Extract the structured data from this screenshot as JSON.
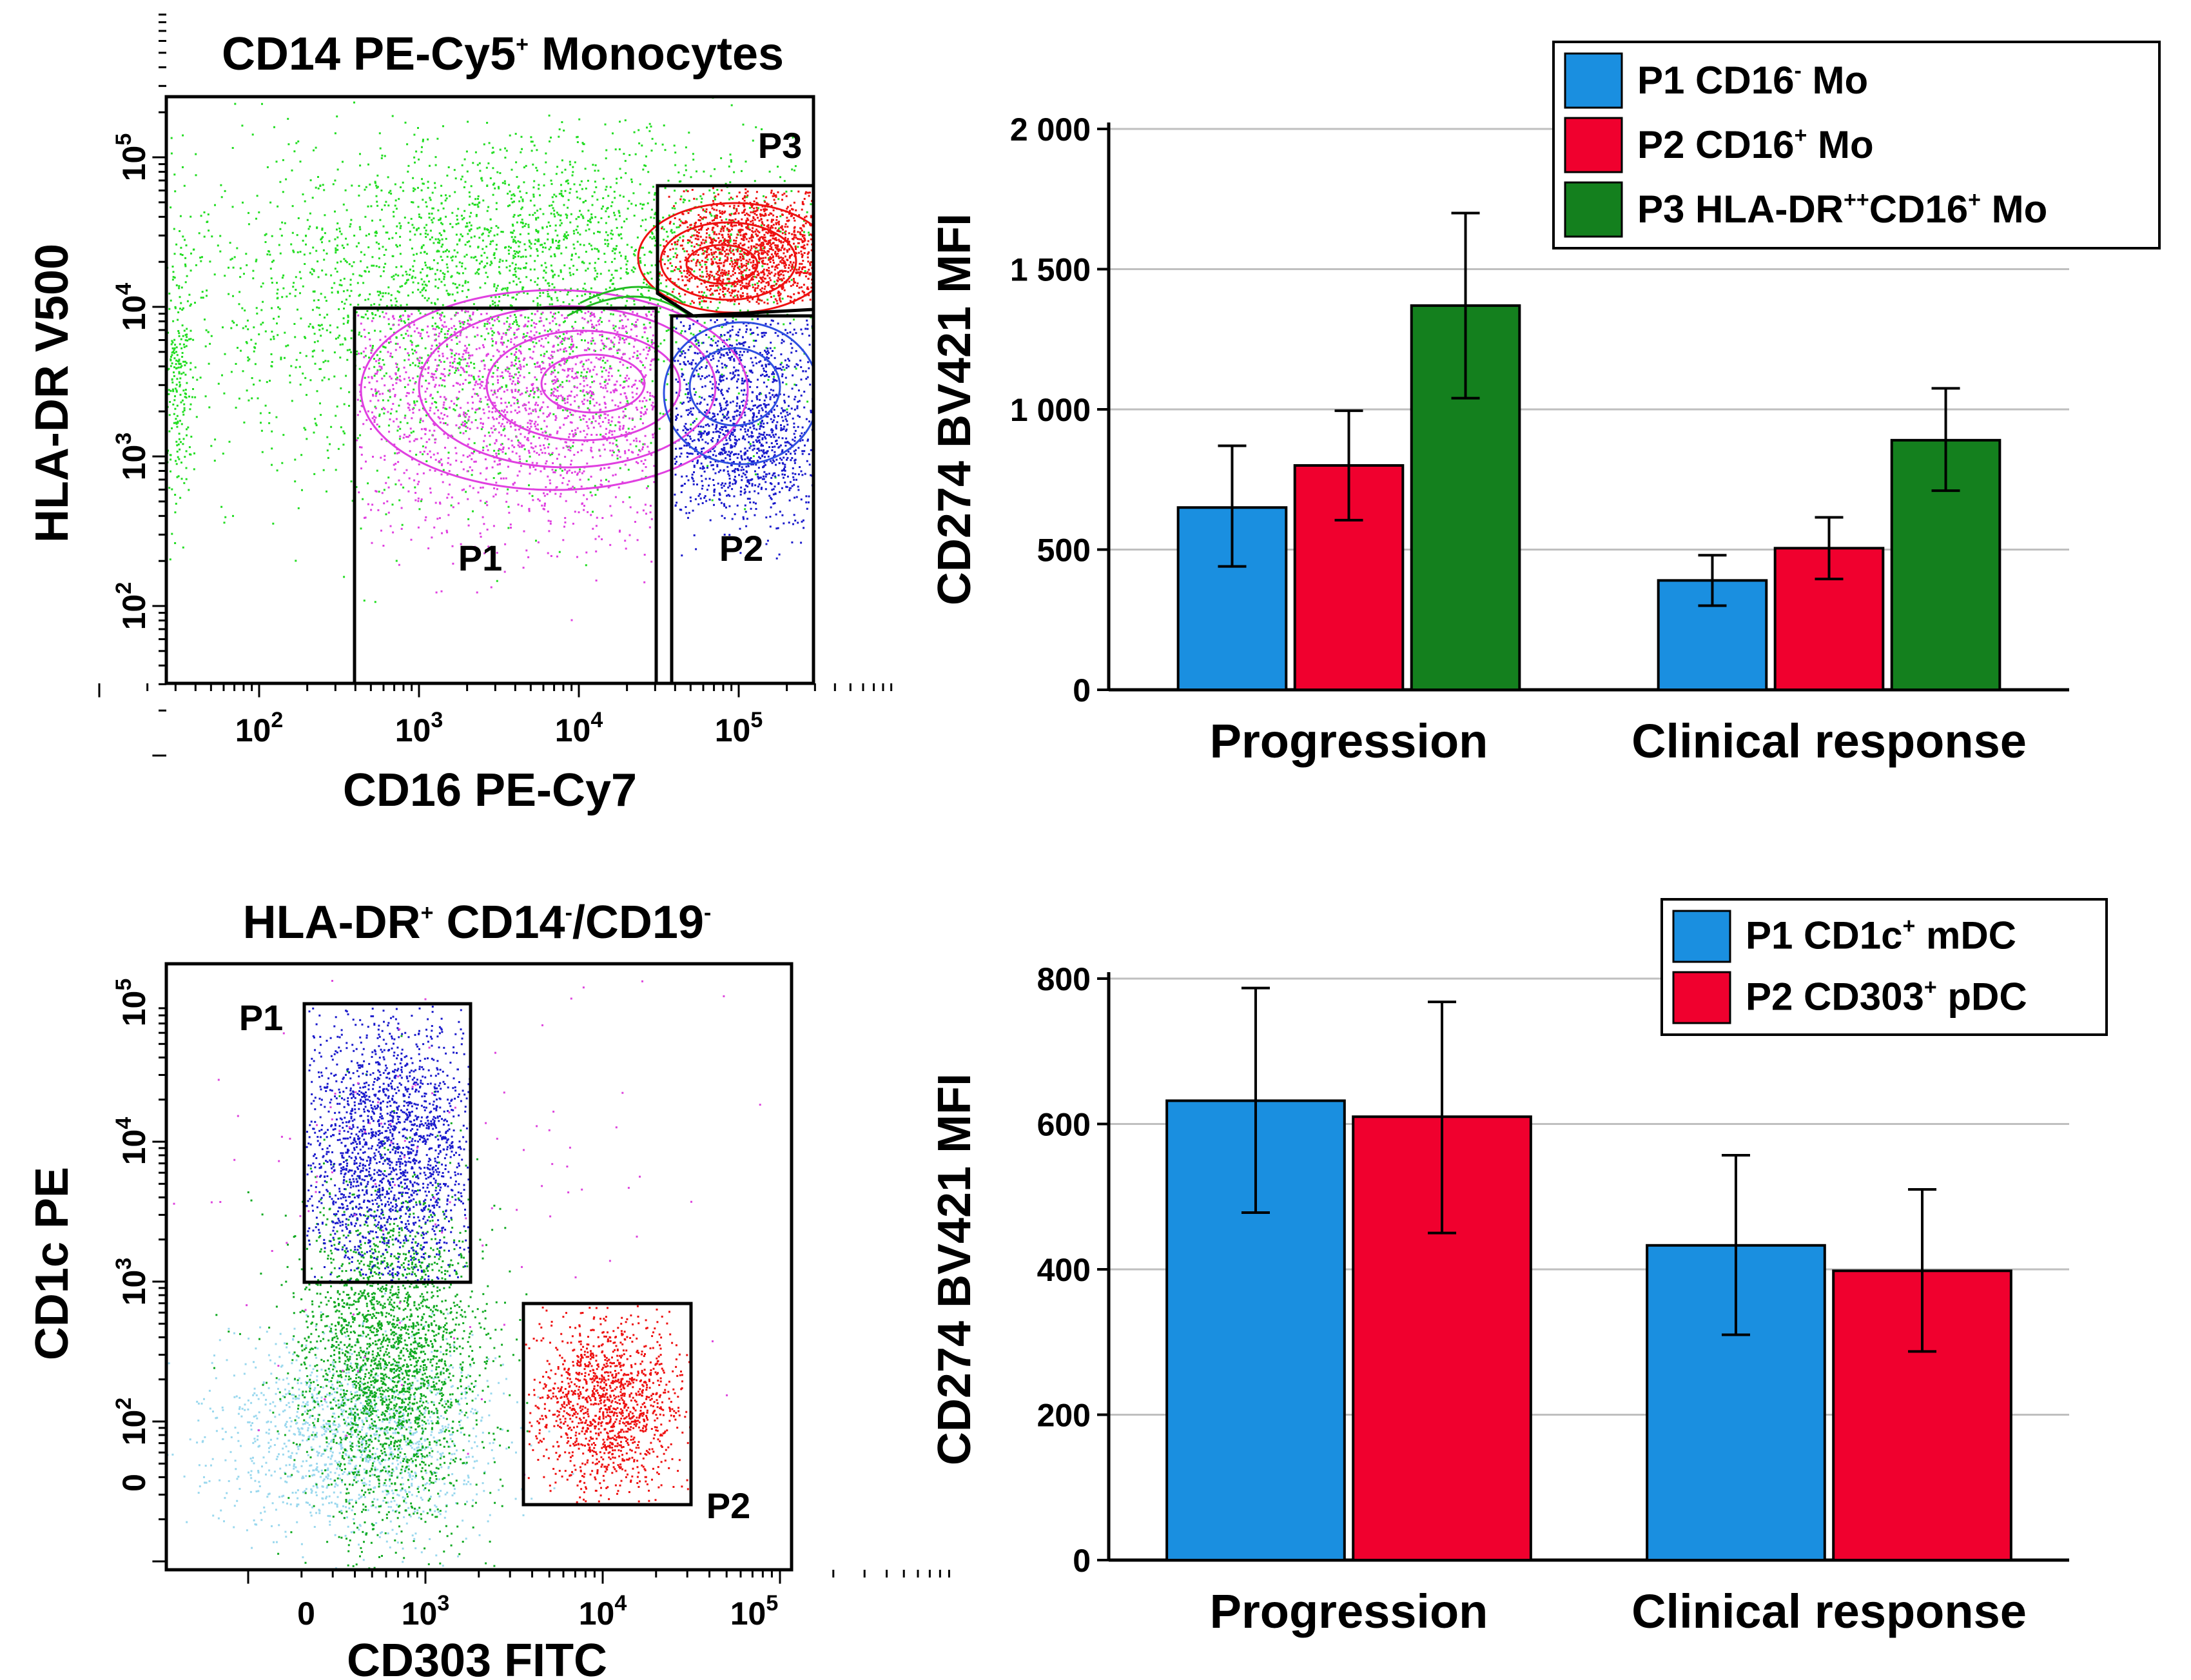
{
  "panels": {
    "top_left": {
      "title": "CD14 PE-Cy5",
      "title_sup": "+",
      "title_suffix": " Monocytes",
      "xlabel": "CD16 PE-Cy7",
      "ylabel": "HLA-DR V500",
      "x_ticks": [
        {
          "base": "10",
          "exp": "2"
        },
        {
          "base": "10",
          "exp": "3"
        },
        {
          "base": "10",
          "exp": "4"
        },
        {
          "base": "10",
          "exp": "5"
        }
      ],
      "y_ticks": [
        {
          "base": "10",
          "exp": "2"
        },
        {
          "base": "10",
          "exp": "3"
        },
        {
          "base": "10",
          "exp": "4"
        },
        {
          "base": "10",
          "exp": "5"
        }
      ],
      "gates": [
        "P1",
        "P2",
        "P3"
      ],
      "colors": {
        "P1": "#e040e0",
        "P2": "#1a1acc",
        "P3": "#ee1111",
        "other": "#22dd22"
      }
    },
    "bottom_left": {
      "title_parts": [
        {
          "t": "HLA-DR",
          "sup": false
        },
        {
          "t": "+",
          "sup": true
        },
        {
          "t": " CD14",
          "sup": false
        },
        {
          "t": "-",
          "sup": true
        },
        {
          "t": "/CD19",
          "sup": false
        },
        {
          "t": "-",
          "sup": true
        }
      ],
      "xlabel": "CD303 FITC",
      "ylabel": "CD1c PE",
      "x_ticks": [
        {
          "base": "0",
          "exp": ""
        },
        {
          "base": "10",
          "exp": "3"
        },
        {
          "base": "10",
          "exp": "4"
        },
        {
          "base": "10",
          "exp": "5"
        }
      ],
      "y_ticks": [
        {
          "base": "0",
          "exp": ""
        },
        {
          "base": "10",
          "exp": "2"
        },
        {
          "base": "10",
          "exp": "3"
        },
        {
          "base": "10",
          "exp": "4"
        },
        {
          "base": "10",
          "exp": "5"
        }
      ],
      "gates": [
        "P1",
        "P2"
      ],
      "colors": {
        "P1": "#1a1acc",
        "P2": "#ee1111",
        "other": "#11aa22",
        "bg": "#9ad8ee"
      }
    }
  },
  "chart_data": [
    {
      "type": "bar",
      "title": "",
      "xlabel": "",
      "ylabel": "CD274 BV421 MFI",
      "categories": [
        "Progression",
        "Clinical response"
      ],
      "ylim": [
        0,
        2000
      ],
      "yticks": [
        0,
        500,
        1000,
        1500,
        2000
      ],
      "ytick_labels": [
        "0",
        "500",
        "1 000",
        "1 500",
        "2 000"
      ],
      "grid": true,
      "legend_position": "top-right",
      "series": [
        {
          "name": "P1 CD16",
          "sup": "-",
          "suffix": " Mo",
          "color": "#1a8fe0",
          "values": [
            650,
            390
          ],
          "err_low": [
            440,
            300
          ],
          "err_high": [
            870,
            480
          ]
        },
        {
          "name": "P2 CD16",
          "sup": "+",
          "suffix": " Mo",
          "color": "#f0002e",
          "values": [
            800,
            505
          ],
          "err_low": [
            605,
            395
          ],
          "err_high": [
            995,
            615
          ]
        },
        {
          "name": "P3 HLA-DR",
          "sup": "++",
          "mid": "CD16",
          "sup2": "+",
          "suffix": " Mo",
          "color": "#14801e",
          "values": [
            1370,
            890
          ],
          "err_low": [
            1040,
            710
          ],
          "err_high": [
            1700,
            1075
          ]
        }
      ]
    },
    {
      "type": "bar",
      "title": "",
      "xlabel": "",
      "ylabel": "CD274 BV421 MFI",
      "categories": [
        "Progression",
        "Clinical response"
      ],
      "ylim": [
        0,
        800
      ],
      "yticks": [
        0,
        200,
        400,
        600,
        800
      ],
      "ytick_labels": [
        "0",
        "200",
        "400",
        "600",
        "800"
      ],
      "grid": true,
      "legend_position": "top-right",
      "series": [
        {
          "name": "P1 CD1c",
          "sup": "+",
          "suffix": " mDC",
          "color": "#1a8fe0",
          "values": [
            632,
            433
          ],
          "err_low": [
            478,
            310
          ],
          "err_high": [
            787,
            557
          ]
        },
        {
          "name": "P2 CD303",
          "sup": "+",
          "suffix": " pDC",
          "color": "#f0002e",
          "values": [
            610,
            398
          ],
          "err_low": [
            450,
            287
          ],
          "err_high": [
            768,
            510
          ]
        }
      ]
    }
  ]
}
